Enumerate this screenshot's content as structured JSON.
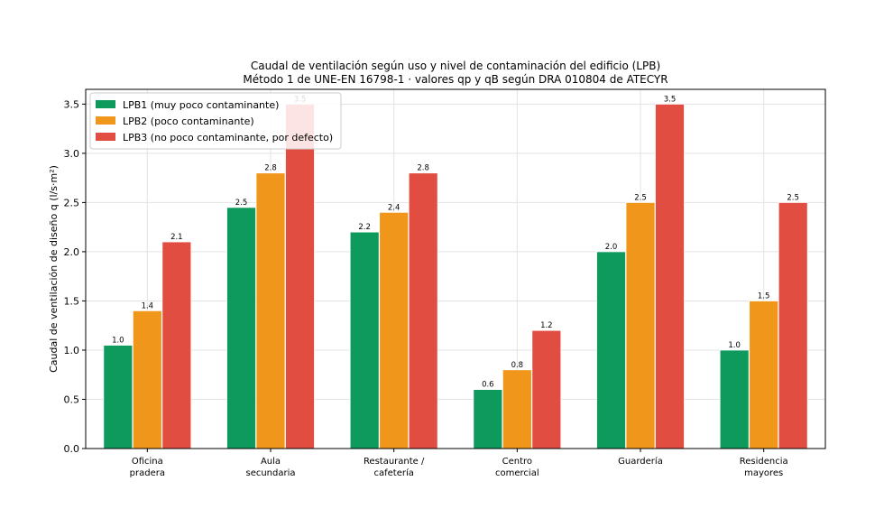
{
  "chart_data": {
    "type": "bar",
    "title": "Caudal de ventilación según uso y nivel de contaminación del edificio (LPB)",
    "subtitle": "Método 1 de UNE-EN 16798-1 · valores qp y qB según DRA 010804 de ATECYR",
    "xlabel": "",
    "ylabel": "Caudal de ventilación de diseño  q (l/s·m²)",
    "ylim": [
      0,
      3.65
    ],
    "yticks": [
      0.0,
      0.5,
      1.0,
      1.5,
      2.0,
      2.5,
      3.0,
      3.5
    ],
    "ytick_labels": [
      "0.0",
      "0.5",
      "1.0",
      "1.5",
      "2.0",
      "2.5",
      "3.0",
      "3.5"
    ],
    "grid": true,
    "legend_position": "top-left",
    "categories": [
      [
        "Oficina",
        "pradera"
      ],
      [
        "Aula",
        "secundaria"
      ],
      [
        "Restaurante /",
        "cafetería"
      ],
      [
        "Centro",
        "comercial"
      ],
      [
        "Guardería"
      ],
      [
        "Residencia",
        "mayores"
      ]
    ],
    "series": [
      {
        "name": "LPB1 (muy poco contaminante)",
        "color": "#0e9a5c",
        "values": [
          1.05,
          2.45,
          2.2,
          0.6,
          2.0,
          1.0
        ],
        "labels": [
          "1.0",
          "2.5",
          "2.2",
          "0.6",
          "2.0",
          "1.0"
        ]
      },
      {
        "name": "LPB2 (poco contaminante)",
        "color": "#f0961a",
        "values": [
          1.4,
          2.8,
          2.4,
          0.8,
          2.5,
          1.5
        ],
        "labels": [
          "1.4",
          "2.8",
          "2.4",
          "0.8",
          "2.5",
          "1.5"
        ]
      },
      {
        "name": "LPB3 (no poco contaminante, por defecto)",
        "color": "#e24d42",
        "values": [
          2.1,
          3.5,
          2.8,
          1.2,
          3.5,
          2.5
        ],
        "labels": [
          "2.1",
          "3.5",
          "2.8",
          "1.2",
          "3.5",
          "2.5"
        ]
      }
    ]
  }
}
